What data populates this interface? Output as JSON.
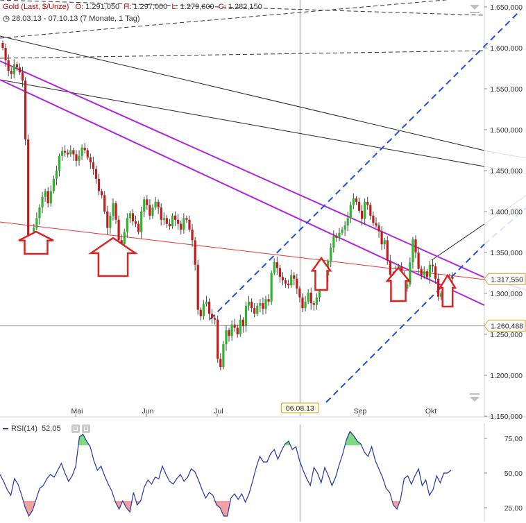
{
  "header": {
    "instrument": "Gold (Last, $/Unze)",
    "open_label": "O:",
    "open": "1.291,050",
    "high_label": "H:",
    "high": "1.297,000",
    "low_label": "L:",
    "low": "1.279,600",
    "close_label": "C:",
    "close": "1.282,150",
    "period": "28.03.13 - 07.10.13 (7 Monate, 1 Tag)"
  },
  "rsi_header": {
    "label": "RSI(14)",
    "value": "52,05"
  },
  "colors": {
    "up": "#2db52d",
    "down": "#c21a1a",
    "trend_purple": "#b025e0",
    "channel_blue": "#1f4fe0",
    "support_red": "#ee3333",
    "arrow_red": "#dd2222",
    "rsi_line": "#2233aa",
    "rsi_over": "#7fd87f",
    "rsi_under": "#f0a0a0",
    "price_badge_border": "#d4a020"
  },
  "chart_data": [
    {
      "type": "candlestick",
      "title": "Gold (Last, $/Unze)",
      "ylim": [
        1150,
        1650
      ],
      "y_ticks": [
        {
          "value": 1650,
          "label": "1.650,000"
        },
        {
          "value": 1600,
          "label": "1.600,000"
        },
        {
          "value": 1550,
          "label": "1.550,000"
        },
        {
          "value": 1500,
          "label": "1.500,000"
        },
        {
          "value": 1450,
          "label": "1.450,000"
        },
        {
          "value": 1400,
          "label": "1.400,000"
        },
        {
          "value": 1350,
          "label": "1.350,000"
        },
        {
          "value": 1300,
          "label": "1.300,000"
        },
        {
          "value": 1250,
          "label": "1.250,000"
        },
        {
          "value": 1200,
          "label": "1.200,000"
        },
        {
          "value": 1150,
          "label": "1.150,000"
        }
      ],
      "x_ticks": [
        "Mai",
        "Jun",
        "Jul",
        "Sep",
        "Okt"
      ],
      "x_tick_months": [
        1,
        2,
        3,
        5,
        6
      ],
      "crosshair": {
        "date_label": "06.08.13",
        "month": 4.17
      },
      "price_badges": [
        {
          "value": 1317.55,
          "label": "1.317,550"
        },
        {
          "value": 1260.488,
          "label": "1.260,488"
        }
      ],
      "horizontal_line": 1260.488,
      "grid": false,
      "candles_close": [
        1600,
        1585,
        1572,
        1568,
        1580,
        1576,
        1570,
        1560,
        1488,
        1370,
        1368,
        1380,
        1392,
        1405,
        1418,
        1425,
        1410,
        1425,
        1440,
        1450,
        1468,
        1474,
        1472,
        1470,
        1475,
        1470,
        1462,
        1468,
        1478,
        1475,
        1466,
        1460,
        1452,
        1440,
        1425,
        1420,
        1400,
        1380,
        1395,
        1410,
        1390,
        1365,
        1360,
        1375,
        1392,
        1398,
        1388,
        1385,
        1375,
        1400,
        1415,
        1408,
        1395,
        1405,
        1412,
        1405,
        1390,
        1392,
        1385,
        1382,
        1395,
        1390,
        1385,
        1378,
        1392,
        1390,
        1378,
        1365,
        1335,
        1280,
        1272,
        1287,
        1290,
        1275,
        1270,
        1268,
        1220,
        1210,
        1238,
        1255,
        1248,
        1262,
        1258,
        1250,
        1268,
        1260,
        1285,
        1290,
        1282,
        1275,
        1285,
        1288,
        1281,
        1293,
        1290,
        1325,
        1338,
        1331,
        1320,
        1316,
        1312,
        1310,
        1322,
        1318,
        1306,
        1295,
        1282,
        1290,
        1301,
        1288,
        1286,
        1295,
        1320,
        1314,
        1322,
        1339,
        1356,
        1370,
        1368,
        1374,
        1378,
        1383,
        1392,
        1408,
        1416,
        1412,
        1401,
        1391,
        1412,
        1408,
        1395,
        1386,
        1383,
        1376,
        1360,
        1365,
        1340,
        1323,
        1318,
        1328,
        1333,
        1320,
        1306,
        1311,
        1338,
        1366,
        1350,
        1330,
        1322,
        1327,
        1320,
        1335,
        1333,
        1318,
        1296,
        1300,
        1309,
        1312,
        1320,
        1318
      ]
    },
    {
      "type": "line",
      "title": "RSI(14)",
      "ylim": [
        15,
        85
      ],
      "y_ticks": [
        {
          "value": 75,
          "label": "75,00"
        },
        {
          "value": 50,
          "label": "50,00"
        },
        {
          "value": 25,
          "label": "25,00"
        }
      ],
      "overbought": 70,
      "oversold": 30,
      "current": 52.05,
      "values": [
        49,
        44,
        38,
        34,
        46,
        42,
        34,
        25,
        19,
        23,
        31,
        39,
        41,
        46,
        49,
        47,
        52,
        57,
        50,
        44,
        48,
        55,
        76,
        78,
        73,
        69,
        59,
        52,
        55,
        48,
        42,
        37,
        29,
        24,
        30,
        25,
        22,
        36,
        27,
        30,
        40,
        45,
        42,
        47,
        46,
        55,
        49,
        44,
        42,
        46,
        49,
        44,
        47,
        53,
        51,
        45,
        38,
        32,
        36,
        34,
        27,
        25,
        19,
        19,
        32,
        35,
        31,
        35,
        29,
        35,
        44,
        54,
        62,
        58,
        58,
        64,
        67,
        60,
        66,
        71,
        73,
        67,
        69,
        59,
        52,
        46,
        41,
        54,
        50,
        43,
        54,
        48,
        41,
        47,
        56,
        64,
        74,
        80,
        77,
        73,
        71,
        65,
        62,
        69,
        59,
        53,
        47,
        39,
        36,
        27,
        24,
        31,
        46,
        48,
        42,
        48,
        53,
        41,
        45,
        34,
        38,
        48,
        43,
        50,
        50,
        52
      ]
    }
  ]
}
